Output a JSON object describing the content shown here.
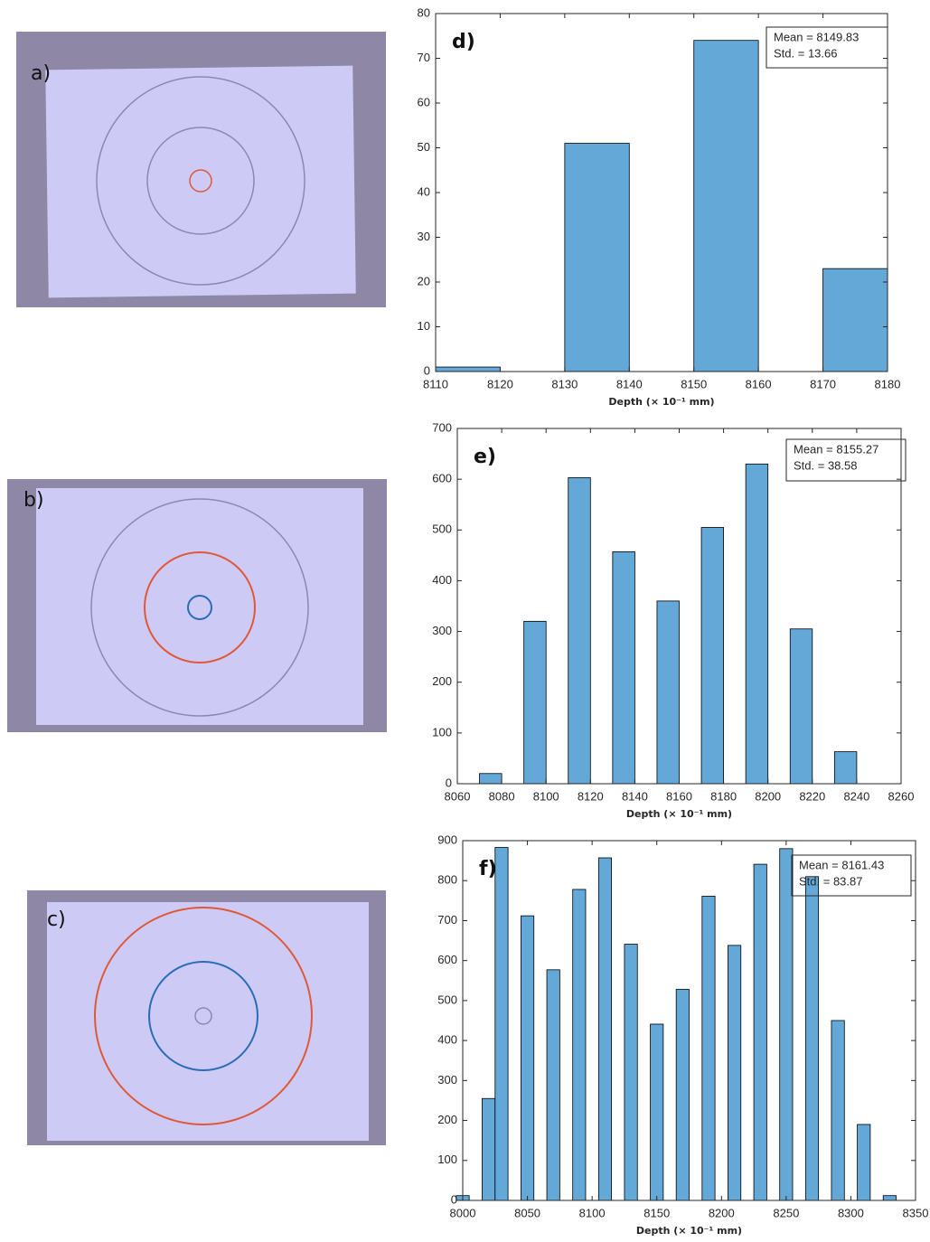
{
  "photo_labels": [
    "a)",
    "b)",
    "c)"
  ],
  "chart_data": [
    {
      "type": "histogram",
      "label": "d)",
      "annotation": [
        "Mean = 8149.83",
        "Std. = 13.66"
      ],
      "xlabel": "Depth (× 10⁻¹ mm)",
      "color": "#64a8d8",
      "bins": [
        8110,
        8120,
        8130,
        8140,
        8150,
        8160,
        8170,
        8180
      ],
      "values": [
        1,
        0,
        51,
        0,
        74,
        0,
        23
      ],
      "xlim": [
        8110,
        8180
      ],
      "ylim": [
        0,
        80
      ],
      "xticks": [
        8110,
        8120,
        8130,
        8140,
        8150,
        8160,
        8170,
        8180
      ],
      "yticks": [
        0,
        10,
        20,
        30,
        40,
        50,
        60,
        70,
        80
      ]
    },
    {
      "type": "histogram",
      "label": "e)",
      "annotation": [
        "Mean = 8155.27",
        "Std. = 38.58"
      ],
      "xlabel": "Depth (× 10⁻¹ mm)",
      "color": "#64a8d8",
      "bins": [
        8070,
        8080,
        8090,
        8100,
        8110,
        8120,
        8130,
        8140,
        8150,
        8160,
        8170,
        8180,
        8190,
        8200,
        8210,
        8220,
        8230,
        8240
      ],
      "values": [
        20,
        0,
        320,
        0,
        603,
        0,
        457,
        0,
        360,
        0,
        505,
        0,
        630,
        0,
        305,
        0,
        63
      ],
      "xlim": [
        8060,
        8260
      ],
      "ylim": [
        0,
        700
      ],
      "xticks": [
        8060,
        8080,
        8100,
        8120,
        8140,
        8160,
        8180,
        8200,
        8220,
        8240,
        8260
      ],
      "yticks": [
        0,
        100,
        200,
        300,
        400,
        500,
        600,
        700
      ]
    },
    {
      "type": "histogram",
      "label": "f)",
      "annotation": [
        "Mean = 8161.43",
        "Std. = 83.87"
      ],
      "xlabel": "Depth (× 10⁻¹ mm)",
      "color": "#64a8d8",
      "bins": [
        7995,
        8005,
        8015,
        8025,
        8035,
        8045,
        8055,
        8065,
        8075,
        8085,
        8095,
        8105,
        8115,
        8125,
        8135,
        8145,
        8155,
        8165,
        8175,
        8185,
        8195,
        8205,
        8215,
        8225,
        8235,
        8245,
        8255,
        8265,
        8275,
        8285,
        8295,
        8305,
        8315,
        8325,
        8335
      ],
      "values": [
        12,
        0,
        255,
        883,
        0,
        712,
        0,
        577,
        0,
        778,
        0,
        857,
        0,
        641,
        0,
        441,
        0,
        528,
        0,
        761,
        0,
        638,
        0,
        841,
        0,
        880,
        0,
        810,
        0,
        450,
        0,
        190,
        0,
        12
      ],
      "xlim": [
        8000,
        8350
      ],
      "ylim": [
        0,
        900
      ],
      "xticks": [
        8000,
        8050,
        8100,
        8150,
        8200,
        8250,
        8300,
        8350
      ],
      "yticks": [
        0,
        100,
        200,
        300,
        400,
        500,
        600,
        700,
        800,
        900
      ]
    }
  ]
}
